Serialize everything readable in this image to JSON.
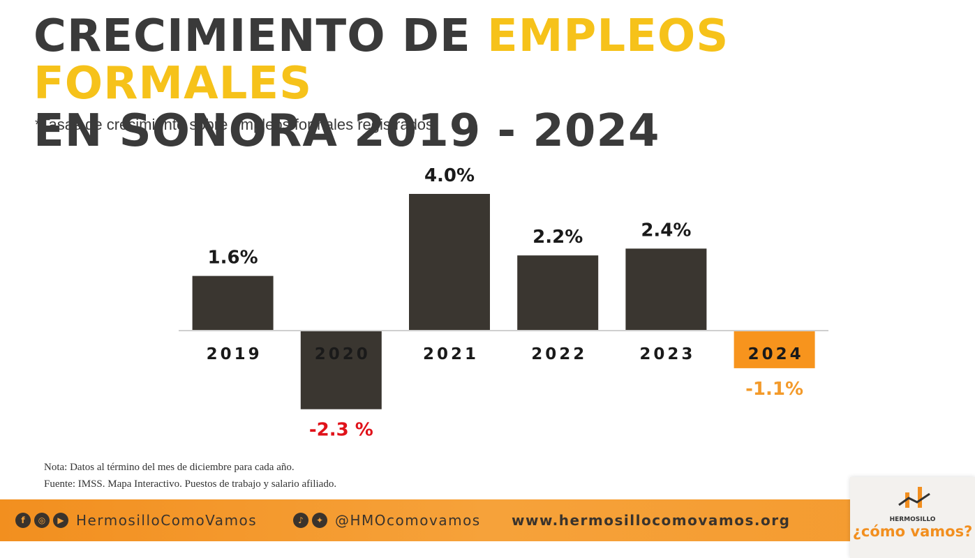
{
  "header": {
    "title_part1": "CRECIMIENTO DE ",
    "title_highlight": "EMPLEOS FORMALES",
    "title_line2": "EN SONORA 2019 - 2024",
    "subtitle": "*Tasas de crecimiento sobre empleos formales registrados."
  },
  "chart_data": {
    "type": "bar",
    "title": "CRECIMIENTO DE EMPLEOS FORMALES EN SONORA 2019 - 2024",
    "subtitle": "*Tasas de crecimiento sobre empleos formales registrados.",
    "categories": [
      "2019",
      "2020",
      "2021",
      "2022",
      "2023",
      "2024"
    ],
    "values": [
      1.6,
      -2.3,
      4.0,
      2.2,
      2.4,
      -1.1
    ],
    "value_labels": [
      "1.6%",
      "-2.3 %",
      "4.0%",
      "2.2%",
      "2.4%",
      "-1.1%"
    ],
    "bar_colors": [
      "#3a3630",
      "#3a3630",
      "#3a3630",
      "#3a3630",
      "#3a3630",
      "#f7941d"
    ],
    "label_colors": [
      "#1a1a1a",
      "#e0121a",
      "#1a1a1a",
      "#1a1a1a",
      "#1a1a1a",
      "#f39a2a"
    ],
    "category_label_colors": [
      "#1a1a1a",
      "#1a1a1a",
      "#1a1a1a",
      "#1a1a1a",
      "#1a1a1a",
      "#1a1a1a"
    ],
    "xlabel": "",
    "ylabel": "",
    "ylim": [
      -2.3,
      4.0
    ],
    "grid": false,
    "legend": "none"
  },
  "notes": {
    "note": "Nota: Datos al término del mes de diciembre para cada año.",
    "source": "Fuente: IMSS. Mapa Interactivo. Puestos de trabajo y salario afiliado."
  },
  "footer": {
    "facebook_icon": "f",
    "instagram_icon": "◎",
    "youtube_icon": "▶",
    "tiktok_icon": "♪",
    "twitter_icon": "✦",
    "handle_1": "HermosilloComoVamos",
    "handle_2": "@HMOcomovamos",
    "website": "www.hermosillocomovamos.org",
    "background_color": "#f6a23a"
  },
  "logo": {
    "top_text": "HERMOSILLO",
    "bottom_text": "¿cómo vamos?"
  }
}
